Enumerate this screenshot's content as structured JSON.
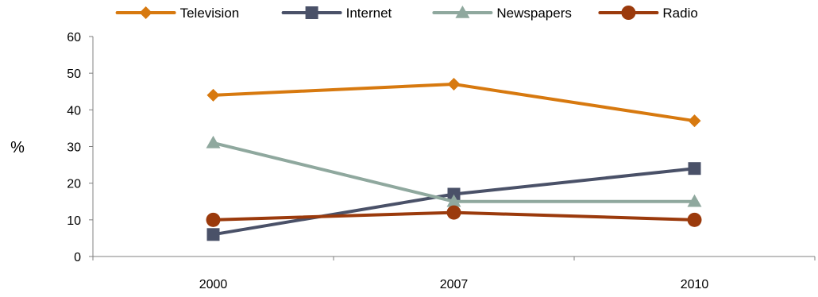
{
  "chart_data": {
    "type": "line",
    "title": "",
    "xlabel": "",
    "ylabel": "%",
    "ylim": [
      0,
      60
    ],
    "y_ticks": [
      0,
      10,
      20,
      30,
      40,
      50,
      60
    ],
    "categories": [
      "2000",
      "2007",
      "2010"
    ],
    "grid": false,
    "legend_position": "top",
    "series": [
      {
        "name": "Television",
        "values": [
          44,
          47,
          37
        ],
        "color": "#D7790F",
        "marker": "diamond"
      },
      {
        "name": "Internet",
        "values": [
          6,
          17,
          24
        ],
        "color": "#4A5168",
        "marker": "square"
      },
      {
        "name": "Newspapers",
        "values": [
          31,
          15,
          15
        ],
        "color": "#8FA89E",
        "marker": "triangle"
      },
      {
        "name": "Radio",
        "values": [
          10,
          12,
          10
        ],
        "color": "#9B3A0C",
        "marker": "circle"
      }
    ]
  }
}
